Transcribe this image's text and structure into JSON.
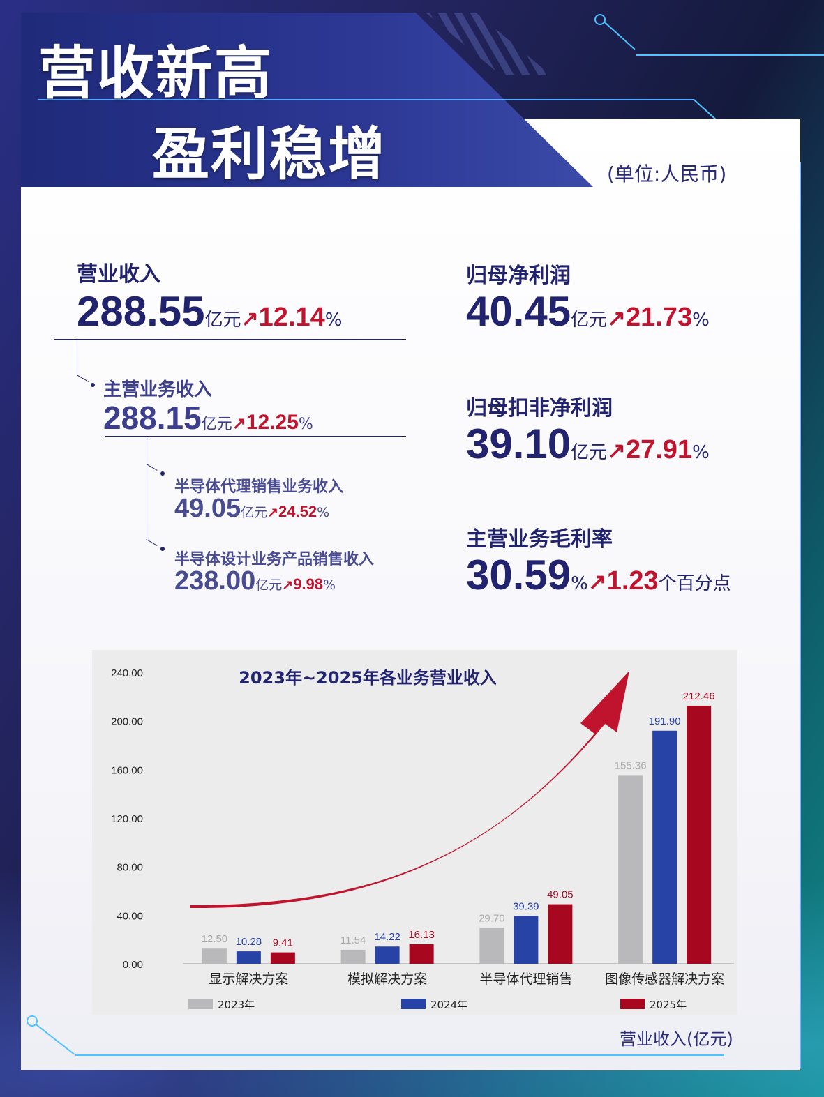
{
  "header": {
    "line1": "营收新高",
    "line2": "盈利稳增",
    "unit_note": "(单位:人民币)"
  },
  "metrics": {
    "revenue": {
      "label": "营业收入",
      "value": "288.55",
      "unit": "亿元",
      "growth": "12.14",
      "pct": "%"
    },
    "main_revenue": {
      "label": "主营业务收入",
      "value": "288.15",
      "unit": "亿元",
      "growth": "12.25",
      "pct": "%"
    },
    "agency_sales": {
      "label": "半导体代理销售业务收入",
      "value": "49.05",
      "unit": "亿元",
      "growth": "24.52",
      "pct": "%"
    },
    "design_sales": {
      "label": "半导体设计业务产品销售收入",
      "value": "238.00",
      "unit": "亿元",
      "growth": "9.98",
      "pct": "%"
    },
    "net_profit": {
      "label": "归母净利润",
      "value": "40.45",
      "unit": "亿元",
      "growth": "21.73",
      "pct": "%"
    },
    "net_profit_deducted": {
      "label": "归母扣非净利润",
      "value": "39.10",
      "unit": "亿元",
      "growth": "27.91",
      "pct": "%"
    },
    "gross_margin": {
      "label": "主营业务毛利率",
      "value": "30.59",
      "unit": "%",
      "growth": "1.23",
      "pct": "个百分点"
    }
  },
  "chart_data": {
    "type": "bar",
    "title": "2023年~2025年各业务营业收入",
    "categories": [
      "显示解决方案",
      "模拟解决方案",
      "半导体代理销售",
      "图像传感器解决方案"
    ],
    "series": [
      {
        "name": "2023年",
        "values": [
          12.5,
          11.54,
          29.7,
          155.36
        ],
        "color": "#b9b9bb",
        "label_color": "#aaaaaa"
      },
      {
        "name": "2024年",
        "values": [
          10.28,
          14.22,
          39.39,
          191.9
        ],
        "color": "#2843a6",
        "label_color": "#2843a6"
      },
      {
        "name": "2025年",
        "values": [
          9.41,
          16.13,
          49.05,
          212.46
        ],
        "color": "#a8081f",
        "label_color": "#a8081f"
      }
    ],
    "yticks": [
      "0.00",
      "40.00",
      "80.00",
      "120.00",
      "160.00",
      "200.00",
      "240.00"
    ],
    "ylim": [
      0,
      240
    ],
    "xlabel": "营业收入(亿元)",
    "ylabel": "",
    "legend": "bottom",
    "grid": false
  }
}
